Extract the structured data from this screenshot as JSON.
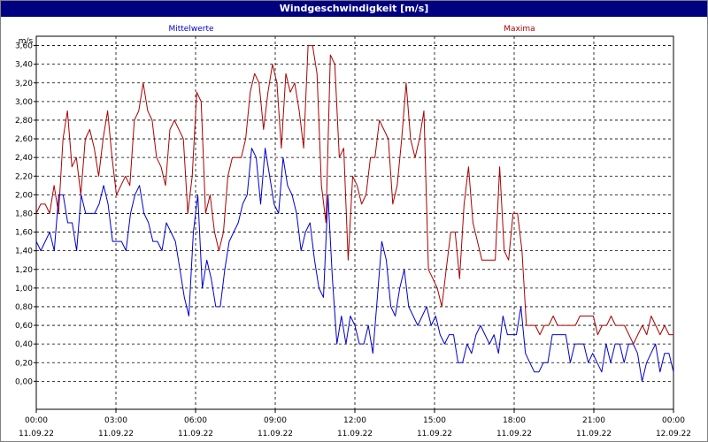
{
  "window": {
    "title": "Windgeschwindigkeit [m/s]"
  },
  "chart_data": {
    "type": "line",
    "title": "Windgeschwindigkeit [m/s]",
    "ylabel": "m/s",
    "ylim": [
      -0.3,
      3.7
    ],
    "xlim_hours": [
      0,
      24
    ],
    "y_ticks": [
      "0,00",
      "0,20",
      "0,40",
      "0,60",
      "0,80",
      "1,00",
      "1,20",
      "1,40",
      "1,60",
      "1,80",
      "2,00",
      "2,20",
      "2,40",
      "2,60",
      "2,80",
      "3,00",
      "3,20",
      "3,40",
      "3,60"
    ],
    "x_ticks": [
      {
        "time": "00:00",
        "date": "11.09.22"
      },
      {
        "time": "03:00",
        "date": "11.09.22"
      },
      {
        "time": "06:00",
        "date": "11.09.22"
      },
      {
        "time": "09:00",
        "date": "11.09.22"
      },
      {
        "time": "12:00",
        "date": "11.09.22"
      },
      {
        "time": "15:00",
        "date": "11.09.22"
      },
      {
        "time": "18:00",
        "date": "11.09.22"
      },
      {
        "time": "21:00",
        "date": "11.09.22"
      },
      {
        "time": "00:00",
        "date": "12.09.22"
      }
    ],
    "grid": true,
    "series": [
      {
        "name": "Mittelwerte",
        "color": "#0000cc",
        "values": [
          1.5,
          1.4,
          1.5,
          1.6,
          1.4,
          2.0,
          2.0,
          1.7,
          1.7,
          1.4,
          2.0,
          1.8,
          1.8,
          1.8,
          1.9,
          2.1,
          1.9,
          1.5,
          1.5,
          1.5,
          1.4,
          1.8,
          2.0,
          2.1,
          1.8,
          1.7,
          1.5,
          1.5,
          1.4,
          1.7,
          1.6,
          1.5,
          1.2,
          0.9,
          0.7,
          1.6,
          2.0,
          1.0,
          1.3,
          1.1,
          0.8,
          0.8,
          1.2,
          1.5,
          1.6,
          1.7,
          1.9,
          2.0,
          2.5,
          2.4,
          1.9,
          2.5,
          2.2,
          1.9,
          1.8,
          2.4,
          2.1,
          2.0,
          1.8,
          1.4,
          1.6,
          1.7,
          1.3,
          1.0,
          0.9,
          2.0,
          1.1,
          0.4,
          0.7,
          0.4,
          0.7,
          0.6,
          0.4,
          0.4,
          0.6,
          0.3,
          0.9,
          1.5,
          1.3,
          0.8,
          0.7,
          1.0,
          1.2,
          0.8,
          0.7,
          0.6,
          0.7,
          0.8,
          0.6,
          0.7,
          0.5,
          0.4,
          0.5,
          0.5,
          0.2,
          0.2,
          0.4,
          0.3,
          0.5,
          0.6,
          0.5,
          0.4,
          0.5,
          0.3,
          0.7,
          0.5,
          0.5,
          0.5,
          0.8,
          0.3,
          0.2,
          0.1,
          0.1,
          0.2,
          0.2,
          0.5,
          0.5,
          0.5,
          0.5,
          0.2,
          0.4,
          0.4,
          0.4,
          0.2,
          0.3,
          0.2,
          0.1,
          0.4,
          0.2,
          0.4,
          0.4,
          0.2,
          0.4,
          0.4,
          0.3,
          0.0,
          0.2,
          0.3,
          0.4,
          0.1,
          0.3,
          0.3,
          0.1
        ]
      },
      {
        "name": "Maxima",
        "color": "#aa0000",
        "values": [
          1.8,
          1.9,
          1.9,
          1.8,
          2.1,
          1.8,
          2.6,
          2.9,
          2.3,
          2.4,
          2.0,
          2.6,
          2.7,
          2.5,
          2.2,
          2.6,
          2.9,
          2.4,
          2.0,
          2.1,
          2.2,
          2.1,
          2.8,
          2.9,
          3.2,
          2.9,
          2.8,
          2.4,
          2.3,
          2.1,
          2.7,
          2.8,
          2.7,
          2.6,
          1.8,
          2.2,
          3.1,
          3.0,
          1.8,
          2.0,
          1.6,
          1.4,
          1.6,
          2.2,
          2.4,
          2.4,
          2.4,
          2.6,
          3.1,
          3.3,
          3.2,
          2.7,
          3.1,
          3.4,
          3.2,
          2.5,
          3.3,
          3.1,
          3.2,
          2.9,
          2.5,
          3.6,
          3.6,
          3.3,
          2.1,
          1.7,
          3.5,
          3.4,
          2.4,
          2.5,
          1.3,
          2.2,
          2.1,
          1.9,
          2.0,
          2.4,
          2.4,
          2.8,
          2.7,
          2.6,
          1.9,
          2.1,
          2.6,
          3.2,
          2.6,
          2.4,
          2.6,
          2.9,
          1.2,
          1.1,
          1.0,
          0.8,
          1.2,
          1.6,
          1.6,
          1.1,
          1.9,
          2.3,
          1.7,
          1.5,
          1.3,
          1.3,
          1.3,
          1.3,
          2.3,
          1.4,
          1.3,
          1.8,
          1.8,
          1.4,
          0.6,
          0.6,
          0.6,
          0.5,
          0.6,
          0.6,
          0.7,
          0.6,
          0.6,
          0.6,
          0.6,
          0.6,
          0.7,
          0.7,
          0.7,
          0.7,
          0.5,
          0.6,
          0.6,
          0.7,
          0.6,
          0.6,
          0.6,
          0.5,
          0.4,
          0.5,
          0.6,
          0.5,
          0.7,
          0.6,
          0.5,
          0.6,
          0.5,
          0.5
        ]
      }
    ]
  }
}
